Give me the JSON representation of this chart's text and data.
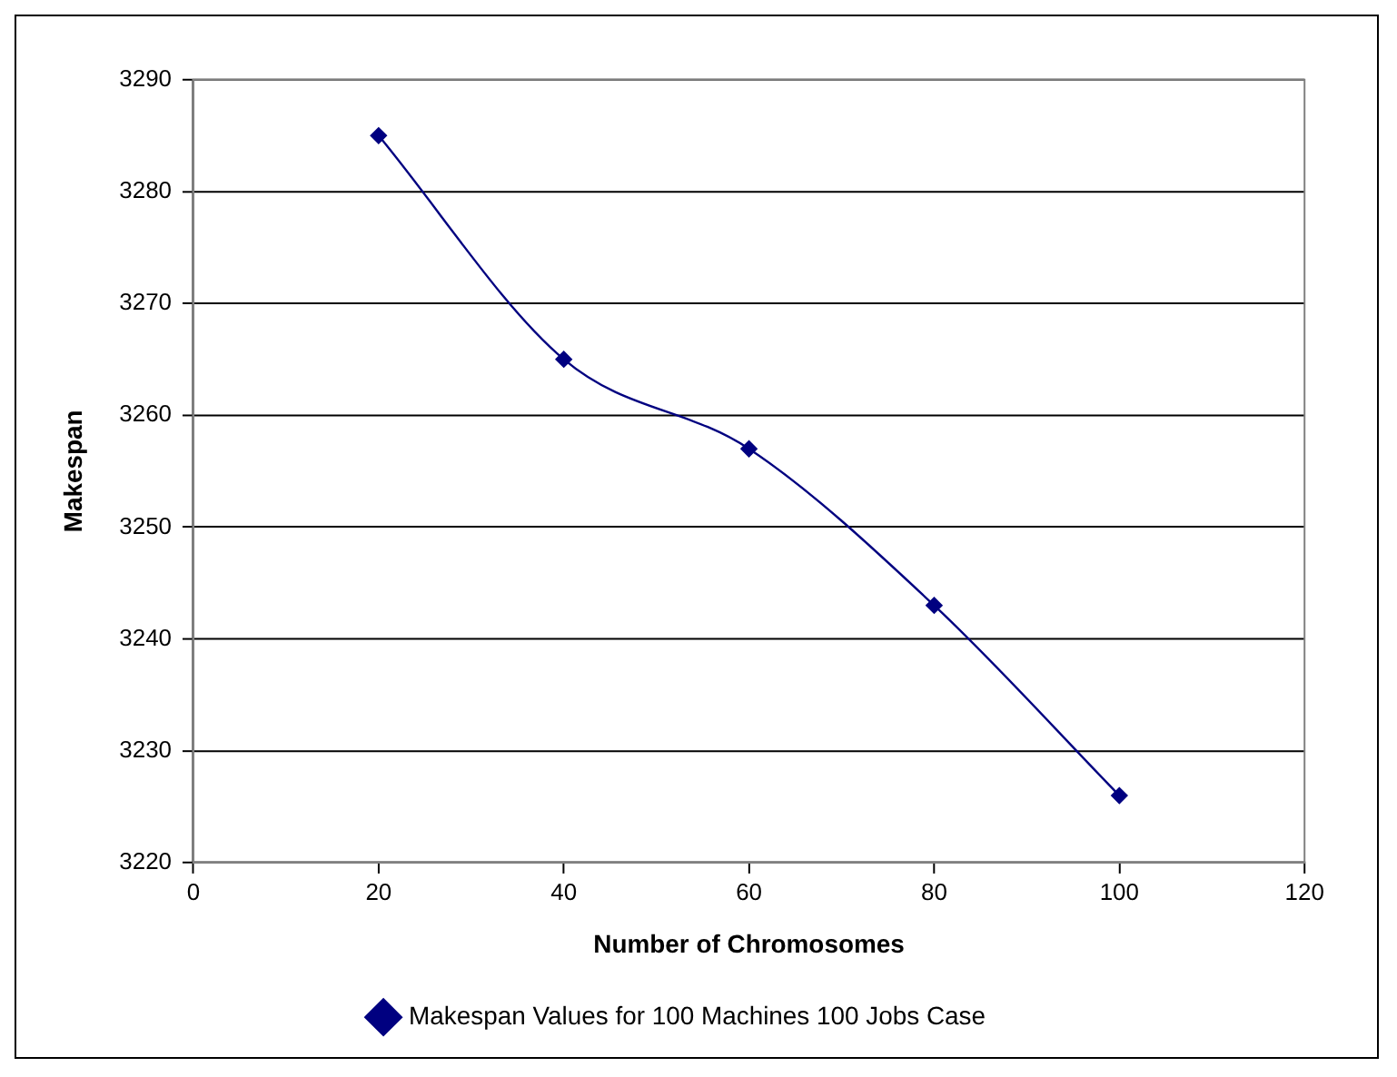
{
  "chart_data": {
    "type": "line",
    "xlabel": "Number of Chromosomes",
    "ylabel": "Makespan",
    "x": [
      20,
      40,
      60,
      80,
      100
    ],
    "series": [
      {
        "name": "Makespan Values for 100 Machines 100 Jobs Case",
        "color": "#000080",
        "values": [
          3285,
          3265,
          3257,
          3243,
          3226
        ]
      }
    ],
    "xlim": [
      0,
      120
    ],
    "xticks": [
      0,
      20,
      40,
      60,
      80,
      100,
      120
    ],
    "ylim": [
      3220,
      3290
    ],
    "yticks": [
      3220,
      3230,
      3240,
      3250,
      3260,
      3270,
      3280,
      3290
    ],
    "grid": "y",
    "legend": "bottom",
    "marker": "diamond",
    "line_style": "solid"
  }
}
